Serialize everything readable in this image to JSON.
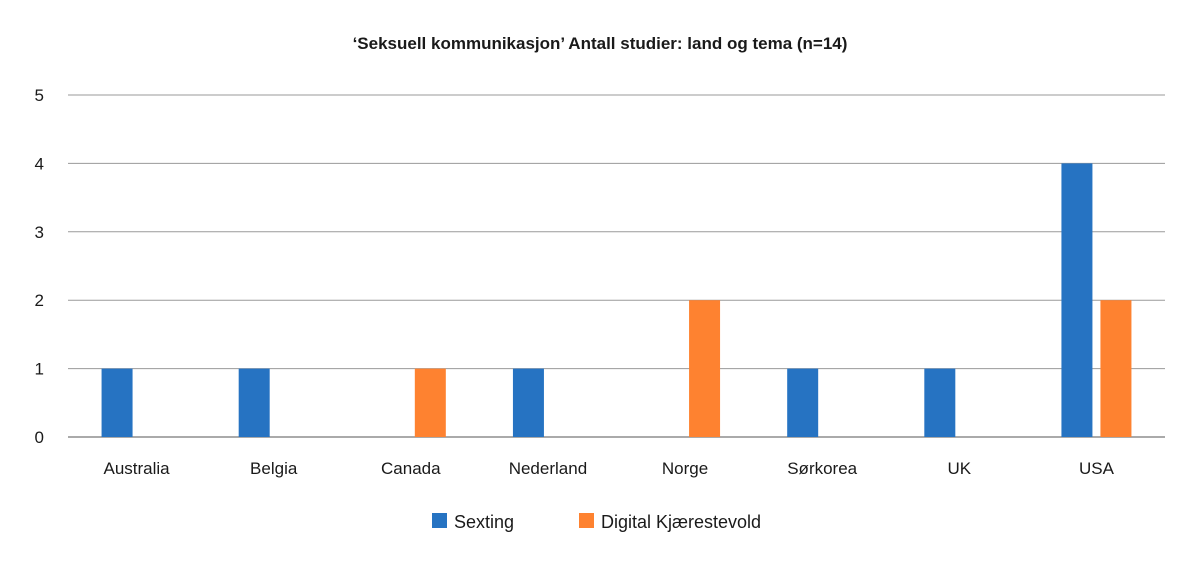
{
  "chart_data": {
    "type": "bar",
    "title": "‘Seksuell kommunikasjon’ Antall studier: land og tema (n=14)",
    "xlabel": "",
    "ylabel": "",
    "categories": [
      "Australia",
      "Belgia",
      "Canada",
      "Nederland",
      "Norge",
      "Sørkorea",
      "UK",
      "USA"
    ],
    "series": [
      {
        "name": "Sexting",
        "color": "#2673c2",
        "values": [
          1,
          1,
          0,
          1,
          0,
          1,
          1,
          4
        ]
      },
      {
        "name": "Digital Kjærestevold",
        "color": "#fe8230",
        "values": [
          0,
          0,
          1,
          0,
          2,
          0,
          0,
          2
        ]
      }
    ],
    "ylim": [
      0,
      5
    ],
    "yticks": [
      0,
      1,
      2,
      3,
      4,
      5
    ],
    "grid": true,
    "legend_position": "bottom"
  }
}
